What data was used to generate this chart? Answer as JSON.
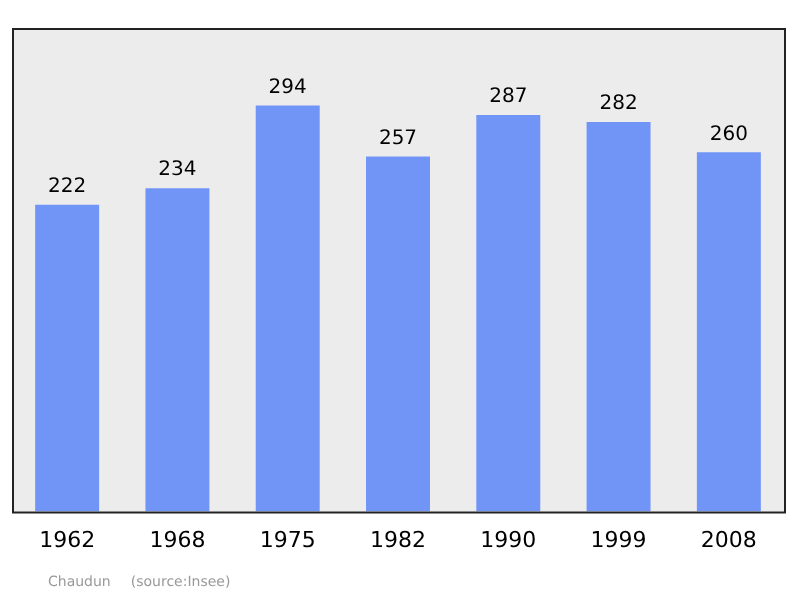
{
  "chart_data": {
    "type": "bar",
    "categories": [
      "1962",
      "1968",
      "1975",
      "1982",
      "1990",
      "1999",
      "2008"
    ],
    "values": [
      222,
      234,
      294,
      257,
      287,
      282,
      260
    ],
    "color": "#7195f7",
    "data_labels": true,
    "grid": false,
    "legend": false,
    "annotations": [
      "Chaudun",
      "(source:Insee)"
    ]
  }
}
